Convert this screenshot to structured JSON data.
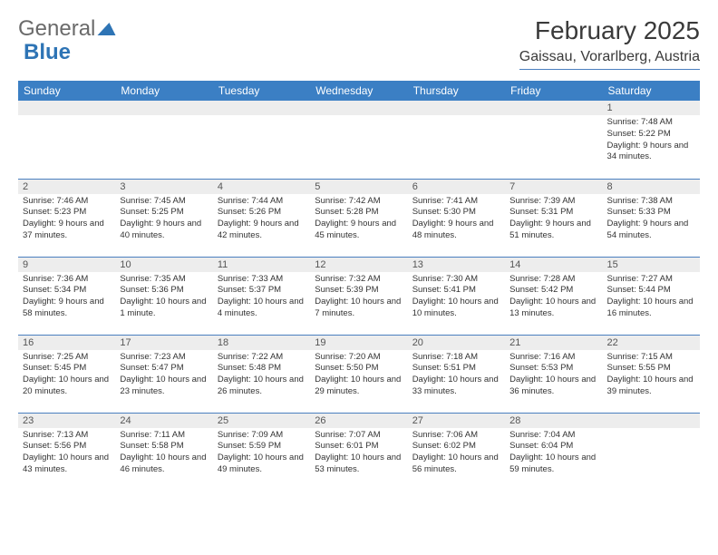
{
  "brand": {
    "part1": "General",
    "part2": "Blue"
  },
  "title": "February 2025",
  "location": "Gaissau, Vorarlberg, Austria",
  "colors": {
    "header_bg": "#3b7fc4",
    "header_text": "#ffffff",
    "daynum_bg": "#ededed",
    "rule": "#4a7fbf",
    "body_text": "#333333",
    "brand_gray": "#6a6a6a",
    "brand_blue": "#2e74b5"
  },
  "fonts": {
    "title_pt": 28,
    "location_pt": 16,
    "dayheader_pt": 12,
    "daynum_pt": 11,
    "body_pt": 9.5
  },
  "weekdays": [
    "Sunday",
    "Monday",
    "Tuesday",
    "Wednesday",
    "Thursday",
    "Friday",
    "Saturday"
  ],
  "weeks": [
    [
      {
        "n": "",
        "sunrise": "",
        "sunset": "",
        "daylight": ""
      },
      {
        "n": "",
        "sunrise": "",
        "sunset": "",
        "daylight": ""
      },
      {
        "n": "",
        "sunrise": "",
        "sunset": "",
        "daylight": ""
      },
      {
        "n": "",
        "sunrise": "",
        "sunset": "",
        "daylight": ""
      },
      {
        "n": "",
        "sunrise": "",
        "sunset": "",
        "daylight": ""
      },
      {
        "n": "",
        "sunrise": "",
        "sunset": "",
        "daylight": ""
      },
      {
        "n": "1",
        "sunrise": "Sunrise: 7:48 AM",
        "sunset": "Sunset: 5:22 PM",
        "daylight": "Daylight: 9 hours and 34 minutes."
      }
    ],
    [
      {
        "n": "2",
        "sunrise": "Sunrise: 7:46 AM",
        "sunset": "Sunset: 5:23 PM",
        "daylight": "Daylight: 9 hours and 37 minutes."
      },
      {
        "n": "3",
        "sunrise": "Sunrise: 7:45 AM",
        "sunset": "Sunset: 5:25 PM",
        "daylight": "Daylight: 9 hours and 40 minutes."
      },
      {
        "n": "4",
        "sunrise": "Sunrise: 7:44 AM",
        "sunset": "Sunset: 5:26 PM",
        "daylight": "Daylight: 9 hours and 42 minutes."
      },
      {
        "n": "5",
        "sunrise": "Sunrise: 7:42 AM",
        "sunset": "Sunset: 5:28 PM",
        "daylight": "Daylight: 9 hours and 45 minutes."
      },
      {
        "n": "6",
        "sunrise": "Sunrise: 7:41 AM",
        "sunset": "Sunset: 5:30 PM",
        "daylight": "Daylight: 9 hours and 48 minutes."
      },
      {
        "n": "7",
        "sunrise": "Sunrise: 7:39 AM",
        "sunset": "Sunset: 5:31 PM",
        "daylight": "Daylight: 9 hours and 51 minutes."
      },
      {
        "n": "8",
        "sunrise": "Sunrise: 7:38 AM",
        "sunset": "Sunset: 5:33 PM",
        "daylight": "Daylight: 9 hours and 54 minutes."
      }
    ],
    [
      {
        "n": "9",
        "sunrise": "Sunrise: 7:36 AM",
        "sunset": "Sunset: 5:34 PM",
        "daylight": "Daylight: 9 hours and 58 minutes."
      },
      {
        "n": "10",
        "sunrise": "Sunrise: 7:35 AM",
        "sunset": "Sunset: 5:36 PM",
        "daylight": "Daylight: 10 hours and 1 minute."
      },
      {
        "n": "11",
        "sunrise": "Sunrise: 7:33 AM",
        "sunset": "Sunset: 5:37 PM",
        "daylight": "Daylight: 10 hours and 4 minutes."
      },
      {
        "n": "12",
        "sunrise": "Sunrise: 7:32 AM",
        "sunset": "Sunset: 5:39 PM",
        "daylight": "Daylight: 10 hours and 7 minutes."
      },
      {
        "n": "13",
        "sunrise": "Sunrise: 7:30 AM",
        "sunset": "Sunset: 5:41 PM",
        "daylight": "Daylight: 10 hours and 10 minutes."
      },
      {
        "n": "14",
        "sunrise": "Sunrise: 7:28 AM",
        "sunset": "Sunset: 5:42 PM",
        "daylight": "Daylight: 10 hours and 13 minutes."
      },
      {
        "n": "15",
        "sunrise": "Sunrise: 7:27 AM",
        "sunset": "Sunset: 5:44 PM",
        "daylight": "Daylight: 10 hours and 16 minutes."
      }
    ],
    [
      {
        "n": "16",
        "sunrise": "Sunrise: 7:25 AM",
        "sunset": "Sunset: 5:45 PM",
        "daylight": "Daylight: 10 hours and 20 minutes."
      },
      {
        "n": "17",
        "sunrise": "Sunrise: 7:23 AM",
        "sunset": "Sunset: 5:47 PM",
        "daylight": "Daylight: 10 hours and 23 minutes."
      },
      {
        "n": "18",
        "sunrise": "Sunrise: 7:22 AM",
        "sunset": "Sunset: 5:48 PM",
        "daylight": "Daylight: 10 hours and 26 minutes."
      },
      {
        "n": "19",
        "sunrise": "Sunrise: 7:20 AM",
        "sunset": "Sunset: 5:50 PM",
        "daylight": "Daylight: 10 hours and 29 minutes."
      },
      {
        "n": "20",
        "sunrise": "Sunrise: 7:18 AM",
        "sunset": "Sunset: 5:51 PM",
        "daylight": "Daylight: 10 hours and 33 minutes."
      },
      {
        "n": "21",
        "sunrise": "Sunrise: 7:16 AM",
        "sunset": "Sunset: 5:53 PM",
        "daylight": "Daylight: 10 hours and 36 minutes."
      },
      {
        "n": "22",
        "sunrise": "Sunrise: 7:15 AM",
        "sunset": "Sunset: 5:55 PM",
        "daylight": "Daylight: 10 hours and 39 minutes."
      }
    ],
    [
      {
        "n": "23",
        "sunrise": "Sunrise: 7:13 AM",
        "sunset": "Sunset: 5:56 PM",
        "daylight": "Daylight: 10 hours and 43 minutes."
      },
      {
        "n": "24",
        "sunrise": "Sunrise: 7:11 AM",
        "sunset": "Sunset: 5:58 PM",
        "daylight": "Daylight: 10 hours and 46 minutes."
      },
      {
        "n": "25",
        "sunrise": "Sunrise: 7:09 AM",
        "sunset": "Sunset: 5:59 PM",
        "daylight": "Daylight: 10 hours and 49 minutes."
      },
      {
        "n": "26",
        "sunrise": "Sunrise: 7:07 AM",
        "sunset": "Sunset: 6:01 PM",
        "daylight": "Daylight: 10 hours and 53 minutes."
      },
      {
        "n": "27",
        "sunrise": "Sunrise: 7:06 AM",
        "sunset": "Sunset: 6:02 PM",
        "daylight": "Daylight: 10 hours and 56 minutes."
      },
      {
        "n": "28",
        "sunrise": "Sunrise: 7:04 AM",
        "sunset": "Sunset: 6:04 PM",
        "daylight": "Daylight: 10 hours and 59 minutes."
      },
      {
        "n": "",
        "sunrise": "",
        "sunset": "",
        "daylight": ""
      }
    ]
  ]
}
